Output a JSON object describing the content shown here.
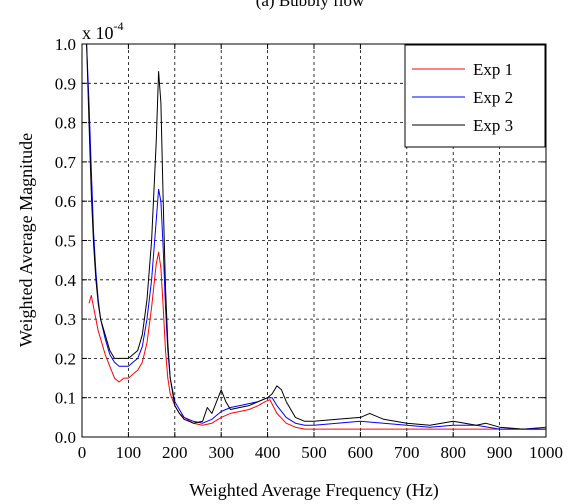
{
  "chart_data": {
    "type": "line",
    "title": "(a) Bubbly flow",
    "xlabel": "Weighted Average Frequency (Hz)",
    "ylabel": "Weighted Average Magnitude",
    "multiplier_base": "x 10",
    "multiplier_exp": "-4",
    "xlim": [
      0,
      1000
    ],
    "ylim": [
      0,
      1.0
    ],
    "xticks": [
      0,
      100,
      200,
      300,
      400,
      500,
      600,
      700,
      800,
      900,
      1000
    ],
    "xtick_labels": [
      "0",
      "100",
      "200",
      "300",
      "400",
      "500",
      "600",
      "700",
      "800",
      "900",
      "1000"
    ],
    "yticks": [
      0,
      0.1,
      0.2,
      0.3,
      0.4,
      0.5,
      0.6,
      0.7,
      0.8,
      0.9,
      1.0
    ],
    "ytick_labels": [
      "0.0",
      "0.1",
      "0.2",
      "0.3",
      "0.4",
      "0.5",
      "0.6",
      "0.7",
      "0.8",
      "0.9",
      "1.0"
    ],
    "grid": true,
    "legend_position": "top-right",
    "series": [
      {
        "name": "Exp 1",
        "color": "#ff0000",
        "x": [
          15,
          20,
          25,
          30,
          35,
          40,
          50,
          60,
          70,
          80,
          90,
          100,
          110,
          120,
          130,
          140,
          150,
          160,
          165,
          170,
          175,
          180,
          185,
          190,
          200,
          210,
          220,
          240,
          260,
          280,
          300,
          320,
          340,
          360,
          380,
          395,
          405,
          420,
          440,
          460,
          480,
          500,
          550,
          600,
          650,
          700,
          750,
          800,
          850,
          900,
          950,
          1000
        ],
        "y": [
          0.34,
          0.36,
          0.33,
          0.3,
          0.27,
          0.25,
          0.21,
          0.18,
          0.15,
          0.14,
          0.15,
          0.15,
          0.16,
          0.17,
          0.19,
          0.24,
          0.33,
          0.44,
          0.47,
          0.43,
          0.33,
          0.22,
          0.15,
          0.11,
          0.08,
          0.06,
          0.05,
          0.035,
          0.03,
          0.035,
          0.05,
          0.06,
          0.065,
          0.07,
          0.08,
          0.09,
          0.095,
          0.06,
          0.035,
          0.025,
          0.02,
          0.02,
          0.02,
          0.02,
          0.02,
          0.02,
          0.02,
          0.02,
          0.02,
          0.02,
          0.02,
          0.02
        ]
      },
      {
        "name": "Exp 2",
        "color": "#0000ff",
        "x": [
          10,
          15,
          20,
          25,
          30,
          35,
          40,
          50,
          60,
          70,
          80,
          90,
          100,
          110,
          120,
          130,
          140,
          150,
          160,
          165,
          170,
          175,
          180,
          185,
          190,
          200,
          210,
          220,
          240,
          260,
          280,
          300,
          320,
          340,
          360,
          380,
          400,
          410,
          420,
          440,
          460,
          480,
          500,
          550,
          600,
          650,
          700,
          750,
          800,
          850,
          900,
          950,
          1000
        ],
        "y": [
          1.0,
          0.85,
          0.68,
          0.52,
          0.42,
          0.35,
          0.3,
          0.25,
          0.21,
          0.19,
          0.18,
          0.18,
          0.18,
          0.19,
          0.2,
          0.23,
          0.3,
          0.4,
          0.55,
          0.63,
          0.6,
          0.48,
          0.33,
          0.22,
          0.15,
          0.09,
          0.07,
          0.05,
          0.04,
          0.035,
          0.045,
          0.065,
          0.075,
          0.08,
          0.085,
          0.09,
          0.1,
          0.1,
          0.08,
          0.05,
          0.035,
          0.03,
          0.03,
          0.035,
          0.04,
          0.035,
          0.03,
          0.025,
          0.03,
          0.03,
          0.02,
          0.02,
          0.025
        ]
      },
      {
        "name": "Exp 3",
        "color": "#000000",
        "x": [
          10,
          15,
          20,
          25,
          30,
          35,
          40,
          50,
          60,
          70,
          80,
          90,
          100,
          110,
          120,
          130,
          140,
          150,
          160,
          165,
          170,
          175,
          180,
          185,
          190,
          200,
          210,
          220,
          240,
          260,
          270,
          280,
          290,
          300,
          310,
          320,
          340,
          360,
          380,
          400,
          410,
          420,
          430,
          440,
          450,
          460,
          480,
          500,
          550,
          600,
          620,
          650,
          700,
          750,
          800,
          850,
          870,
          900,
          950,
          1000
        ],
        "y": [
          1.0,
          0.8,
          0.62,
          0.49,
          0.4,
          0.34,
          0.3,
          0.26,
          0.22,
          0.2,
          0.2,
          0.2,
          0.2,
          0.21,
          0.22,
          0.26,
          0.35,
          0.5,
          0.75,
          0.93,
          0.85,
          0.6,
          0.38,
          0.24,
          0.15,
          0.08,
          0.06,
          0.045,
          0.035,
          0.04,
          0.075,
          0.06,
          0.09,
          0.12,
          0.09,
          0.07,
          0.075,
          0.08,
          0.09,
          0.1,
          0.11,
          0.13,
          0.12,
          0.09,
          0.07,
          0.05,
          0.04,
          0.04,
          0.045,
          0.05,
          0.06,
          0.045,
          0.035,
          0.03,
          0.04,
          0.03,
          0.035,
          0.025,
          0.02,
          0.02
        ]
      }
    ]
  }
}
